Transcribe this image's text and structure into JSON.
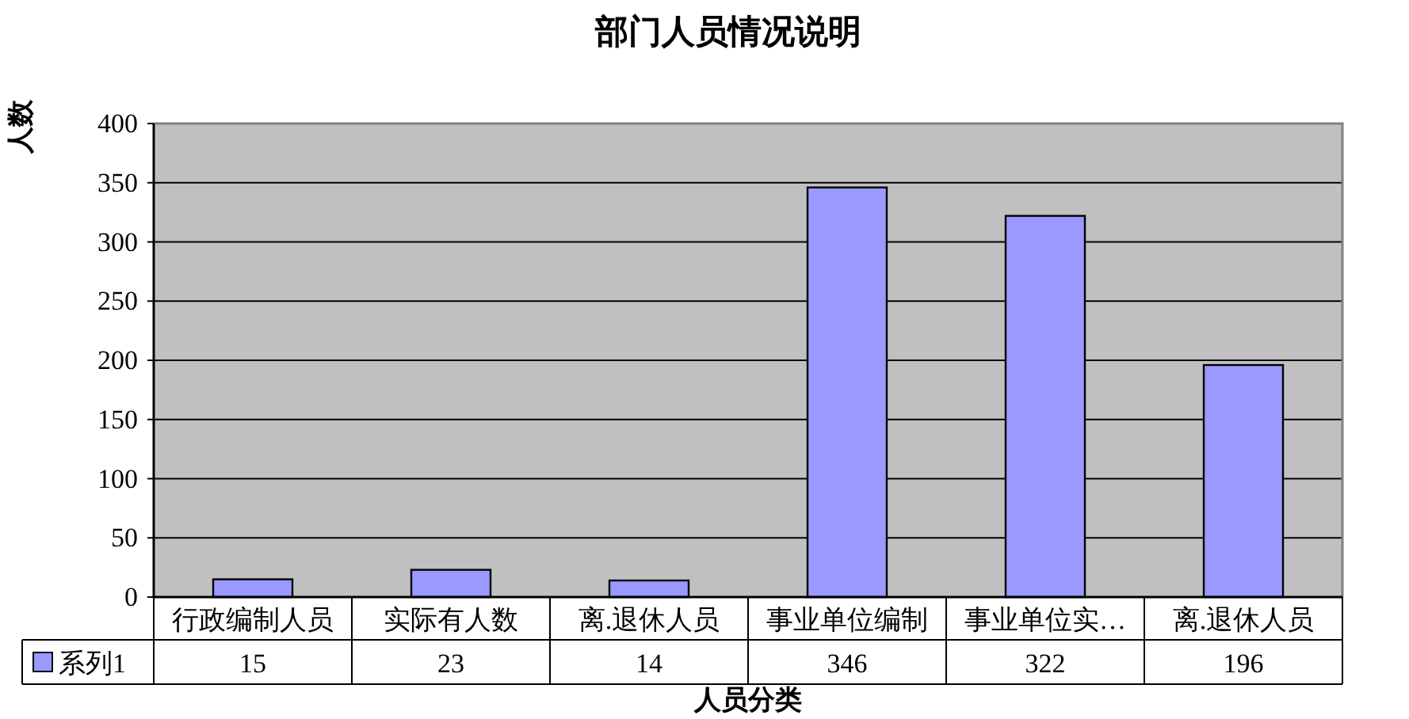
{
  "chart_data": {
    "type": "bar",
    "title": "部门人员情况说明",
    "xlabel": "人员分类",
    "ylabel": "人数",
    "categories": [
      "行政编制人员",
      "实际有人数",
      "离.退休人员",
      "事业单位编制",
      "事业单位实…",
      "离.退休人员"
    ],
    "series": [
      {
        "name": "系列1",
        "color": "#9999ff",
        "values": [
          15,
          23,
          14,
          346,
          322,
          196
        ]
      }
    ],
    "ylim": [
      0,
      400
    ],
    "yticks": [
      0,
      50,
      100,
      150,
      200,
      250,
      300,
      350,
      400
    ],
    "grid": "y",
    "legend": "bottom",
    "data_labels": true
  }
}
